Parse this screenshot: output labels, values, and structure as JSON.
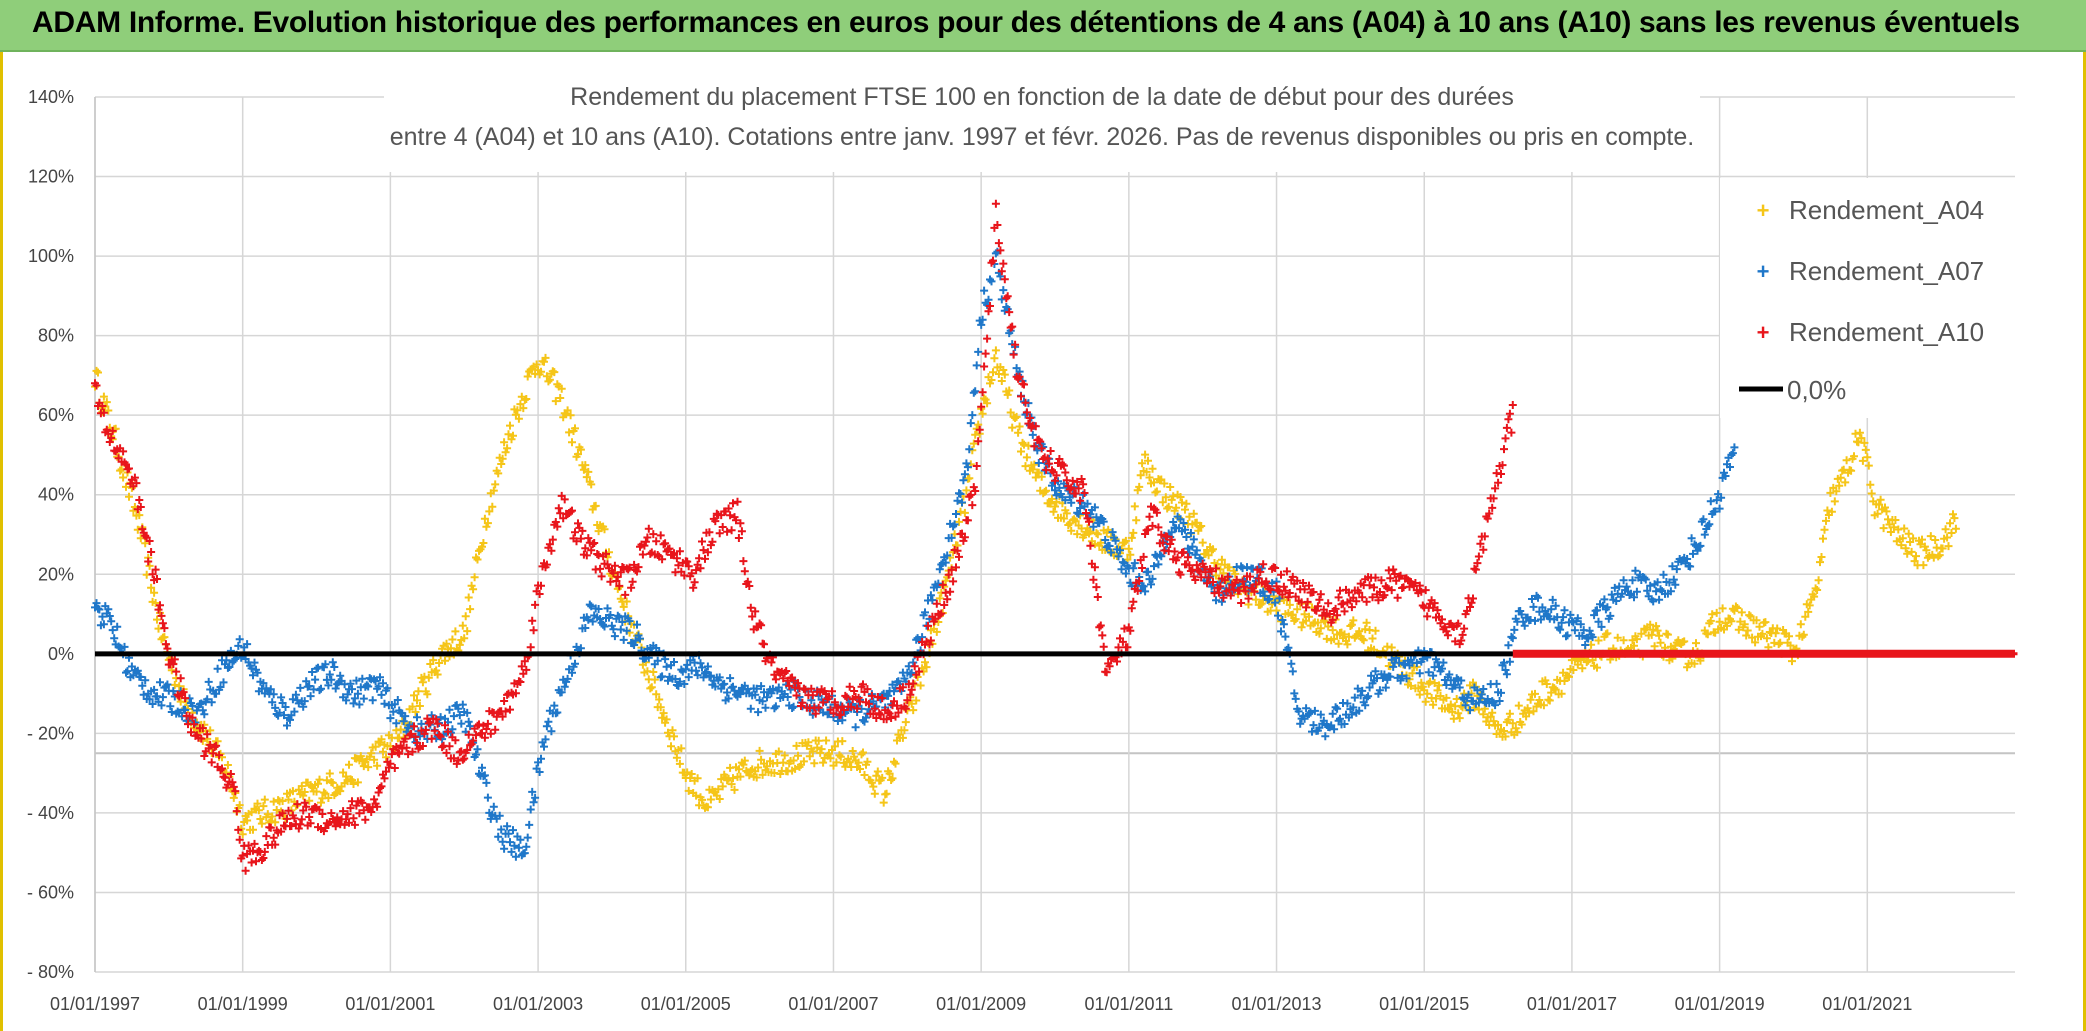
{
  "page": {
    "banner_title": "ADAM Informe. Evolution historique des performances en euros pour des détentions de 4 ans (A04) à 10 ans (A10) sans les revenus éventuels"
  },
  "colors": {
    "banner": "#8fce7a",
    "A04": "#f5c518",
    "A07": "#1f77c9",
    "A10": "#e8151b",
    "zero_line": "#000000"
  },
  "chart_data": {
    "type": "scatter",
    "title_line1": "Rendement du placement FTSE 100 en fonction de la date de début pour des durées",
    "title_line2": "entre 4 (A04) et 10 ans (A10). Cotations entre janv. 1997 et févr. 2026. Pas de revenus disponibles ou pris en compte.",
    "x_range": [
      1997.0,
      2023.0
    ],
    "ylim": [
      -80,
      140
    ],
    "y_ticks": [
      "140%",
      "120%",
      "100%",
      "80%",
      "60%",
      "40%",
      "20%",
      "0%",
      "- 20%",
      "- 40%",
      "- 60%",
      "- 80%"
    ],
    "y_tick_values": [
      140,
      120,
      100,
      80,
      60,
      40,
      20,
      0,
      -20,
      -40,
      -60,
      -80
    ],
    "x_ticks": [
      "01/01/1997",
      "01/01/1999",
      "01/01/2001",
      "01/01/2003",
      "01/01/2005",
      "01/01/2007",
      "01/01/2009",
      "01/01/2011",
      "01/01/2013",
      "01/01/2015",
      "01/01/2017",
      "01/01/2019",
      "01/01/2021"
    ],
    "x_tick_values": [
      1997,
      1999,
      2001,
      2003,
      2005,
      2007,
      2009,
      2011,
      2013,
      2015,
      2017,
      2019,
      2021
    ],
    "legend": [
      "Rendement_A04",
      "Rendement_A07",
      "Rendement_A10",
      "0,0%"
    ],
    "series": [
      {
        "name": "Rendement_A04",
        "end_year": 2022.2,
        "x": [
          1997.0,
          1997.3,
          1997.6,
          1997.9,
          1998.2,
          1998.5,
          1998.8,
          1999.0,
          1999.3,
          1999.6,
          1999.9,
          2000.2,
          2000.5,
          2000.8,
          2001.1,
          2001.4,
          2001.7,
          2002.0,
          2002.3,
          2002.6,
          2002.9,
          2003.0,
          2003.3,
          2003.6,
          2003.9,
          2004.2,
          2004.5,
          2004.8,
          2005.0,
          2005.3,
          2005.6,
          2005.9,
          2006.2,
          2006.5,
          2006.8,
          2007.1,
          2007.4,
          2007.7,
          2007.9,
          2008.2,
          2008.5,
          2008.8,
          2009.0,
          2009.2,
          2009.5,
          2009.8,
          2010.1,
          2010.4,
          2010.7,
          2011.0,
          2011.2,
          2011.5,
          2011.8,
          2012.1,
          2012.4,
          2012.7,
          2013.0,
          2013.3,
          2013.6,
          2013.9,
          2014.2,
          2014.5,
          2014.8,
          2015.1,
          2015.4,
          2015.7,
          2016.0,
          2016.3,
          2016.6,
          2016.9,
          2017.2,
          2017.5,
          2017.8,
          2018.1,
          2018.4,
          2018.7,
          2019.0,
          2019.3,
          2019.6,
          2019.9,
          2020.0,
          2020.3,
          2020.5,
          2020.7,
          2020.9,
          2021.1,
          2021.4,
          2021.7,
          2022.0,
          2022.2
        ],
        "y": [
          70,
          52,
          32,
          5,
          -12,
          -20,
          -30,
          -42,
          -40,
          -38,
          -35,
          -33,
          -30,
          -25,
          -22,
          -10,
          0,
          5,
          35,
          55,
          70,
          74,
          65,
          48,
          28,
          10,
          -5,
          -20,
          -30,
          -38,
          -32,
          -28,
          -27,
          -26,
          -25,
          -25,
          -28,
          -35,
          -22,
          -5,
          15,
          40,
          60,
          75,
          55,
          42,
          36,
          32,
          28,
          26,
          48,
          40,
          35,
          25,
          18,
          15,
          12,
          10,
          8,
          5,
          5,
          0,
          -5,
          -10,
          -14,
          -10,
          -20,
          -16,
          -10,
          -6,
          -2,
          2,
          0,
          5,
          0,
          0,
          10,
          8,
          5,
          3,
          0,
          15,
          38,
          45,
          55,
          38,
          30,
          25,
          28,
          33
        ]
      },
      {
        "name": "Rendement_A07",
        "end_year": 2019.2,
        "x": [
          1997.0,
          1997.2,
          1997.5,
          1997.8,
          1998.1,
          1998.4,
          1998.7,
          1999.0,
          1999.3,
          1999.6,
          1999.9,
          2000.2,
          2000.5,
          2000.8,
          2001.1,
          2001.4,
          2001.7,
          2002.0,
          2002.3,
          2002.5,
          2002.8,
          2003.1,
          2003.4,
          2003.7,
          2004.0,
          2004.3,
          2004.6,
          2004.9,
          2005.2,
          2005.5,
          2005.8,
          2006.1,
          2006.4,
          2006.7,
          2007.0,
          2007.3,
          2007.6,
          2007.9,
          2008.2,
          2008.5,
          2008.8,
          2009.0,
          2009.2,
          2009.5,
          2009.8,
          2010.1,
          2010.4,
          2010.7,
          2011.0,
          2011.3,
          2011.6,
          2011.9,
          2012.2,
          2012.5,
          2012.8,
          2013.0,
          2013.3,
          2013.6,
          2013.9,
          2014.2,
          2014.5,
          2014.8,
          2015.1,
          2015.4,
          2015.7,
          2016.0,
          2016.3,
          2016.6,
          2016.9,
          2017.2,
          2017.5,
          2017.8,
          2018.1,
          2018.4,
          2018.7,
          2019.0,
          2019.2
        ],
        "y": [
          12,
          8,
          -5,
          -10,
          -12,
          -15,
          -5,
          2,
          -10,
          -15,
          -8,
          -5,
          -10,
          -8,
          -15,
          -20,
          -18,
          -15,
          -35,
          -45,
          -50,
          -20,
          -5,
          10,
          8,
          5,
          -2,
          -5,
          -3,
          -8,
          -10,
          -12,
          -10,
          -12,
          -14,
          -15,
          -13,
          -10,
          5,
          25,
          45,
          85,
          100,
          70,
          50,
          40,
          38,
          30,
          20,
          18,
          35,
          25,
          15,
          20,
          18,
          15,
          -15,
          -18,
          -15,
          -10,
          -5,
          -3,
          -2,
          -8,
          -12,
          -10,
          10,
          12,
          8,
          5,
          12,
          18,
          15,
          20,
          28,
          40,
          52
        ]
      },
      {
        "name": "Rendement_A10",
        "end_year": 2016.2,
        "x": [
          1997.0,
          1997.2,
          1997.5,
          1997.8,
          1998.0,
          1998.3,
          1998.6,
          1998.9,
          1999.0,
          1999.3,
          1999.6,
          1999.9,
          2000.2,
          2000.5,
          2000.8,
          2001.0,
          2001.3,
          2001.6,
          2001.9,
          2002.2,
          2002.5,
          2002.8,
          2003.0,
          2003.3,
          2003.6,
          2003.9,
          2004.2,
          2004.5,
          2004.8,
          2005.1,
          2005.4,
          2005.7,
          2005.9,
          2006.2,
          2006.5,
          2006.8,
          2007.1,
          2007.4,
          2007.7,
          2008.0,
          2008.3,
          2008.6,
          2008.9,
          2009.0,
          2009.2,
          2009.5,
          2009.8,
          2010.1,
          2010.4,
          2010.7,
          2011.0,
          2011.3,
          2011.6,
          2011.9,
          2012.2,
          2012.5,
          2012.8,
          2013.1,
          2013.4,
          2013.7,
          2014.0,
          2014.3,
          2014.6,
          2014.9,
          2015.2,
          2015.5,
          2015.7,
          2016.0,
          2016.2
        ],
        "y": [
          65,
          55,
          45,
          20,
          0,
          -18,
          -25,
          -35,
          -52,
          -48,
          -42,
          -40,
          -42,
          -40,
          -38,
          -28,
          -22,
          -18,
          -25,
          -20,
          -15,
          -5,
          15,
          38,
          28,
          22,
          18,
          28,
          25,
          20,
          32,
          35,
          10,
          -5,
          -10,
          -12,
          -12,
          -10,
          -15,
          -10,
          5,
          20,
          40,
          60,
          110,
          70,
          50,
          45,
          40,
          -5,
          5,
          35,
          25,
          20,
          18,
          15,
          20,
          18,
          15,
          10,
          15,
          16,
          18,
          15,
          10,
          5,
          20,
          45,
          60
        ]
      }
    ]
  }
}
